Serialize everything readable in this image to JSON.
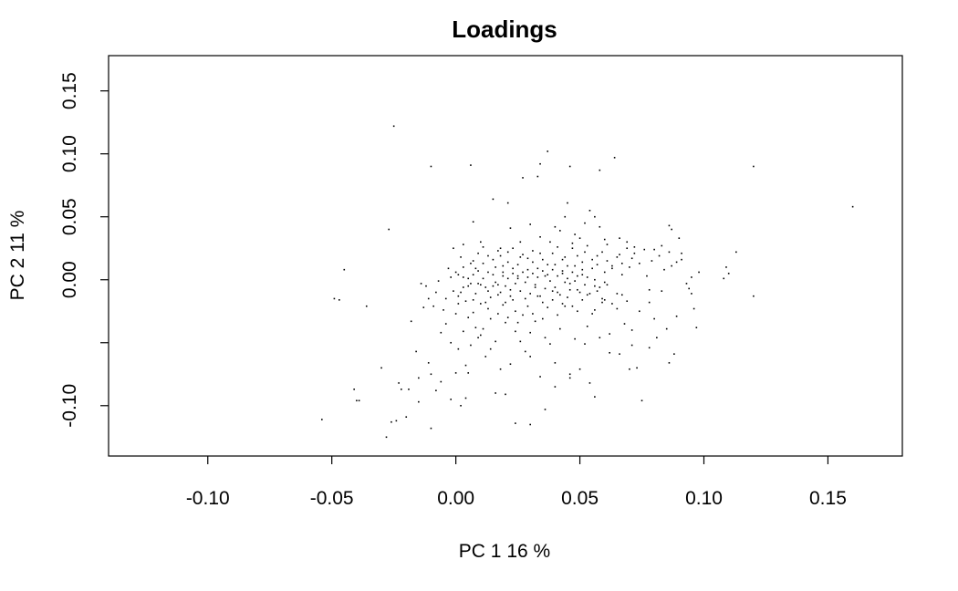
{
  "chart_data": {
    "type": "scatter",
    "title": "Loadings",
    "xlabel": "PC 1 16 %",
    "ylabel": "PC 2 11 %",
    "xlim": [
      -0.14,
      0.18
    ],
    "ylim": [
      -0.14,
      0.178
    ],
    "xticks": [
      -0.1,
      -0.05,
      0.0,
      0.05,
      0.1,
      0.15
    ],
    "xtick_labels": [
      "-0.10",
      "-0.05",
      "0.00",
      "0.05",
      "0.10",
      "0.15"
    ],
    "yticks": [
      -0.1,
      -0.05,
      0.0,
      0.05,
      0.1,
      0.15
    ],
    "ytick_labels": [
      "-0.10",
      "",
      "0.00",
      "0.05",
      "0.10",
      "0.15"
    ],
    "grid": false,
    "legend": "none",
    "point_color": "#000000",
    "points": [
      [
        -0.054,
        -0.111
      ],
      [
        -0.049,
        -0.015
      ],
      [
        -0.047,
        -0.016
      ],
      [
        -0.045,
        0.008
      ],
      [
        -0.041,
        -0.087
      ],
      [
        -0.04,
        -0.096
      ],
      [
        -0.039,
        -0.096
      ],
      [
        -0.036,
        -0.021
      ],
      [
        -0.03,
        -0.07
      ],
      [
        -0.028,
        -0.125
      ],
      [
        -0.027,
        0.04
      ],
      [
        -0.026,
        -0.113
      ],
      [
        -0.025,
        0.122
      ],
      [
        -0.024,
        -0.112
      ],
      [
        -0.023,
        -0.082
      ],
      [
        -0.022,
        -0.087
      ],
      [
        -0.02,
        -0.109
      ],
      [
        -0.019,
        -0.087
      ],
      [
        -0.018,
        -0.033
      ],
      [
        -0.016,
        -0.057
      ],
      [
        -0.015,
        -0.078
      ],
      [
        -0.014,
        -0.003
      ],
      [
        -0.013,
        -0.022
      ],
      [
        -0.012,
        -0.005
      ],
      [
        -0.011,
        -0.015
      ],
      [
        -0.01,
        -0.075
      ],
      [
        -0.01,
        -0.118
      ],
      [
        -0.009,
        -0.021
      ],
      [
        -0.008,
        -0.01
      ],
      [
        -0.007,
        -0.001
      ],
      [
        -0.006,
        -0.081
      ],
      [
        -0.005,
        -0.024
      ],
      [
        -0.004,
        -0.015
      ],
      [
        -0.003,
        0.009
      ],
      [
        -0.002,
        -0.095
      ],
      [
        -0.001,
        0.025
      ],
      [
        0.0,
        -0.027
      ],
      [
        0.001,
        -0.055
      ],
      [
        0.002,
        0.018
      ],
      [
        0.003,
        -0.006
      ],
      [
        0.004,
        -0.068
      ],
      [
        0.005,
        -0.074
      ],
      [
        0.006,
        0.013
      ],
      [
        0.007,
        -0.026
      ],
      [
        0.008,
        0.009
      ],
      [
        0.009,
        0.021
      ],
      [
        0.01,
        -0.004
      ],
      [
        0.011,
        0.026
      ],
      [
        0.012,
        -0.018
      ],
      [
        0.013,
        0.006
      ],
      [
        0.014,
        -0.031
      ],
      [
        0.015,
        0.064
      ],
      [
        0.016,
        0.01
      ],
      [
        0.017,
        -0.012
      ],
      [
        0.018,
        0.019
      ],
      [
        0.019,
        0.003
      ],
      [
        0.02,
        -0.034
      ],
      [
        0.021,
        0.014
      ],
      [
        0.022,
        -0.008
      ],
      [
        0.023,
        0.025
      ],
      [
        0.024,
        -0.025
      ],
      [
        0.025,
        0.001
      ],
      [
        0.026,
        0.018
      ],
      [
        0.027,
        0.081
      ],
      [
        0.028,
        -0.015
      ],
      [
        0.029,
        0.008
      ],
      [
        0.03,
        -0.042
      ],
      [
        0.031,
        0.014
      ],
      [
        0.032,
        -0.006
      ],
      [
        0.033,
        0.082
      ],
      [
        0.034,
        0.021
      ],
      [
        0.035,
        -0.018
      ],
      [
        0.036,
        0.003
      ],
      [
        0.037,
        0.102
      ],
      [
        0.038,
        0.03
      ],
      [
        0.039,
        -0.009
      ],
      [
        0.04,
        0.012
      ],
      [
        0.041,
        -0.028
      ],
      [
        0.042,
        0.039
      ],
      [
        0.043,
        0.007
      ],
      [
        0.044,
        0.018
      ],
      [
        0.045,
        0.061
      ],
      [
        0.046,
        -0.003
      ],
      [
        0.047,
        0.025
      ],
      [
        0.048,
        0.011
      ],
      [
        0.049,
        -0.025
      ],
      [
        0.05,
        0.033
      ],
      [
        0.051,
        0.004
      ],
      [
        0.052,
        0.022
      ],
      [
        0.053,
        -0.037
      ],
      [
        0.054,
        0.055
      ],
      [
        0.055,
        0.009
      ],
      [
        0.056,
        -0.005
      ],
      [
        0.057,
        0.019
      ],
      [
        0.058,
        0.087
      ],
      [
        0.059,
        -0.018
      ],
      [
        0.06,
        0.006
      ],
      [
        0.061,
        0.028
      ],
      [
        0.062,
        -0.058
      ],
      [
        0.063,
        0.011
      ],
      [
        0.064,
        0.097
      ],
      [
        0.065,
        -0.011
      ],
      [
        0.066,
        0.02
      ],
      [
        0.067,
        0.004
      ],
      [
        0.068,
        -0.035
      ],
      [
        0.069,
        0.03
      ],
      [
        0.07,
        0.01
      ],
      [
        0.071,
        -0.04
      ],
      [
        0.072,
        0.021
      ],
      [
        0.073,
        -0.07
      ],
      [
        0.074,
        0.013
      ],
      [
        0.075,
        -0.096
      ],
      [
        0.076,
        0.024
      ],
      [
        0.077,
        0.003
      ],
      [
        0.078,
        -0.008
      ],
      [
        0.079,
        0.015
      ],
      [
        0.08,
        -0.031
      ],
      [
        0.082,
        0.019
      ],
      [
        0.083,
        0.027
      ],
      [
        0.084,
        0.008
      ],
      [
        0.085,
        -0.039
      ],
      [
        0.086,
        0.022
      ],
      [
        0.087,
        0.04
      ],
      [
        0.088,
        -0.059
      ],
      [
        0.089,
        0.014
      ],
      [
        0.09,
        0.033
      ],
      [
        0.091,
        0.021
      ],
      [
        0.093,
        -0.003
      ],
      [
        0.095,
        -0.011
      ],
      [
        0.096,
        -0.023
      ],
      [
        0.097,
        -0.038
      ],
      [
        0.108,
        0.001
      ],
      [
        0.109,
        0.01
      ],
      [
        0.11,
        0.005
      ],
      [
        0.113,
        0.022
      ],
      [
        0.12,
        0.09
      ],
      [
        0.12,
        -0.013
      ],
      [
        0.16,
        0.058
      ],
      [
        0.002,
        -0.1
      ],
      [
        0.004,
        -0.094
      ],
      [
        0.006,
        -0.052
      ],
      [
        0.008,
        -0.038
      ],
      [
        0.01,
        -0.044
      ],
      [
        0.012,
        -0.061
      ],
      [
        0.014,
        -0.055
      ],
      [
        0.016,
        -0.049
      ],
      [
        0.018,
        -0.071
      ],
      [
        0.02,
        -0.018
      ],
      [
        0.022,
        -0.067
      ],
      [
        0.024,
        -0.041
      ],
      [
        0.026,
        -0.049
      ],
      [
        0.028,
        -0.057
      ],
      [
        0.03,
        -0.061
      ],
      [
        0.032,
        -0.033
      ],
      [
        0.034,
        -0.077
      ],
      [
        0.036,
        -0.046
      ],
      [
        0.038,
        -0.051
      ],
      [
        0.04,
        -0.066
      ],
      [
        0.042,
        -0.039
      ],
      [
        0.044,
        -0.021
      ],
      [
        0.046,
        -0.075
      ],
      [
        0.048,
        -0.047
      ],
      [
        0.05,
        -0.071
      ],
      [
        0.052,
        -0.051
      ],
      [
        0.054,
        -0.082
      ],
      [
        0.056,
        -0.024
      ],
      [
        0.058,
        -0.046
      ],
      [
        0.06,
        -0.016
      ],
      [
        0.016,
        -0.09
      ],
      [
        0.02,
        -0.091
      ],
      [
        0.024,
        -0.114
      ],
      [
        0.03,
        -0.115
      ],
      [
        0.036,
        -0.103
      ],
      [
        0.04,
        -0.085
      ],
      [
        0.046,
        -0.078
      ],
      [
        0.056,
        -0.093
      ],
      [
        0.066,
        -0.059
      ],
      [
        0.07,
        -0.071
      ],
      [
        0.078,
        -0.054
      ],
      [
        0.086,
        -0.066
      ],
      [
        -0.015,
        -0.097
      ],
      [
        -0.011,
        -0.066
      ],
      [
        -0.008,
        -0.088
      ],
      [
        -0.006,
        -0.042
      ],
      [
        -0.004,
        -0.035
      ],
      [
        -0.002,
        -0.05
      ],
      [
        0.0,
        -0.074
      ],
      [
        0.001,
        -0.019
      ],
      [
        0.003,
        -0.041
      ],
      [
        0.005,
        -0.03
      ],
      [
        0.007,
        -0.016
      ],
      [
        0.009,
        -0.046
      ],
      [
        0.011,
        -0.039
      ],
      [
        0.013,
        -0.023
      ],
      [
        0.015,
        -0.005
      ],
      [
        0.017,
        -0.027
      ],
      [
        0.019,
        -0.02
      ],
      [
        0.021,
        -0.03
      ],
      [
        0.023,
        -0.016
      ],
      [
        0.025,
        -0.034
      ],
      [
        0.027,
        -0.028
      ],
      [
        0.029,
        -0.021
      ],
      [
        0.031,
        -0.027
      ],
      [
        0.033,
        -0.013
      ],
      [
        0.035,
        -0.031
      ],
      [
        0.037,
        -0.022
      ],
      [
        0.039,
        -0.016
      ],
      [
        0.041,
        -0.01
      ],
      [
        0.043,
        -0.019
      ],
      [
        0.045,
        -0.014
      ],
      [
        0.047,
        -0.021
      ],
      [
        0.049,
        -0.008
      ],
      [
        0.051,
        -0.016
      ],
      [
        0.053,
        -0.012
      ],
      [
        0.055,
        -0.027
      ],
      [
        0.057,
        -0.009
      ],
      [
        0.059,
        -0.015
      ],
      [
        0.061,
        -0.004
      ],
      [
        0.063,
        -0.019
      ],
      [
        0.065,
        -0.023
      ],
      [
        0.067,
        -0.012
      ],
      [
        0.069,
        -0.017
      ],
      [
        0.001,
        0.004
      ],
      [
        0.003,
        0.01
      ],
      [
        0.005,
        0.001
      ],
      [
        0.007,
        0.015
      ],
      [
        0.009,
        0.007
      ],
      [
        0.011,
        0.013
      ],
      [
        0.013,
        0.019
      ],
      [
        0.015,
        0.016
      ],
      [
        0.017,
        0.023
      ],
      [
        0.019,
        0.011
      ],
      [
        0.021,
        0.022
      ],
      [
        0.023,
        0.005
      ],
      [
        0.025,
        0.012
      ],
      [
        0.027,
        0.02
      ],
      [
        0.029,
        0.017
      ],
      [
        0.031,
        0.023
      ],
      [
        0.033,
        0.009
      ],
      [
        0.035,
        0.016
      ],
      [
        0.037,
        0.012
      ],
      [
        0.039,
        0.021
      ],
      [
        0.041,
        0.026
      ],
      [
        0.043,
        0.016
      ],
      [
        0.045,
        0.011
      ],
      [
        0.047,
        0.029
      ],
      [
        0.049,
        0.019
      ],
      [
        0.051,
        0.014
      ],
      [
        0.053,
        0.027
      ],
      [
        0.055,
        0.016
      ],
      [
        0.057,
        0.012
      ],
      [
        0.059,
        0.022
      ],
      [
        0.061,
        0.015
      ],
      [
        0.063,
        0.009
      ],
      [
        0.065,
        0.018
      ],
      [
        0.067,
        0.013
      ],
      [
        0.069,
        0.025
      ],
      [
        0.071,
        0.017
      ],
      [
        0.002,
        -0.01
      ],
      [
        0.004,
        -0.017
      ],
      [
        0.006,
        -0.003
      ],
      [
        0.008,
        -0.011
      ],
      [
        0.01,
        -0.019
      ],
      [
        0.012,
        -0.006
      ],
      [
        0.014,
        -0.014
      ],
      [
        0.016,
        -0.002
      ],
      [
        0.018,
        -0.01
      ],
      [
        0.02,
        -0.005
      ],
      [
        0.022,
        -0.013
      ],
      [
        0.024,
        -0.003
      ],
      [
        0.026,
        -0.009
      ],
      [
        0.028,
        -0.002
      ],
      [
        0.03,
        -0.011
      ],
      [
        0.032,
        -0.004
      ],
      [
        0.034,
        -0.013
      ],
      [
        0.036,
        -0.007
      ],
      [
        0.038,
        -0.001
      ],
      [
        0.04,
        -0.006
      ],
      [
        0.042,
        -0.012
      ],
      [
        0.044,
        -0.002
      ],
      [
        0.046,
        -0.008
      ],
      [
        0.048,
        -0.001
      ],
      [
        0.05,
        -0.01
      ],
      [
        0.052,
        -0.004
      ],
      [
        0.054,
        -0.011
      ],
      [
        0.056,
        0.0
      ],
      [
        0.058,
        -0.006
      ],
      [
        0.06,
        -0.002
      ],
      [
        -0.002,
        0.002
      ],
      [
        -0.001,
        -0.009
      ],
      [
        0.0,
        0.006
      ],
      [
        0.001,
        -0.013
      ],
      [
        0.003,
        0.002
      ],
      [
        0.005,
        -0.005
      ],
      [
        0.007,
        0.004
      ],
      [
        0.009,
        -0.003
      ],
      [
        0.011,
        0.001
      ],
      [
        0.013,
        -0.009
      ],
      [
        0.015,
        0.004
      ],
      [
        0.017,
        -0.004
      ],
      [
        0.019,
        0.006
      ],
      [
        0.021,
        0.001
      ],
      [
        0.023,
        0.009
      ],
      [
        0.025,
        0.003
      ],
      [
        0.027,
        0.006
      ],
      [
        0.029,
        0.002
      ],
      [
        0.031,
        0.005
      ],
      [
        0.033,
        0.002
      ],
      [
        0.035,
        0.007
      ],
      [
        0.037,
        0.004
      ],
      [
        0.039,
        0.008
      ],
      [
        0.041,
        0.003
      ],
      [
        0.043,
        0.005
      ],
      [
        0.045,
        0.001
      ],
      [
        0.047,
        0.006
      ],
      [
        0.049,
        0.003
      ],
      [
        0.051,
        0.008
      ],
      [
        0.053,
        0.002
      ],
      [
        0.003,
        0.028
      ],
      [
        0.01,
        0.03
      ],
      [
        0.018,
        0.025
      ],
      [
        0.026,
        0.03
      ],
      [
        0.034,
        0.034
      ],
      [
        0.04,
        0.042
      ],
      [
        0.048,
        0.036
      ],
      [
        0.052,
        0.045
      ],
      [
        0.06,
        0.032
      ],
      [
        0.066,
        0.033
      ],
      [
        0.072,
        0.026
      ],
      [
        0.08,
        0.024
      ],
      [
        0.007,
        0.046
      ],
      [
        0.022,
        0.041
      ],
      [
        0.03,
        0.044
      ],
      [
        0.044,
        0.05
      ],
      [
        0.058,
        0.042
      ],
      [
        0.086,
        0.043
      ],
      [
        -0.01,
        0.09
      ],
      [
        0.006,
        0.091
      ],
      [
        0.034,
        0.092
      ],
      [
        0.046,
        0.09
      ],
      [
        0.021,
        0.061
      ],
      [
        0.056,
        0.05
      ],
      [
        0.062,
        -0.043
      ],
      [
        0.071,
        -0.052
      ],
      [
        0.081,
        -0.046
      ],
      [
        0.089,
        -0.029
      ],
      [
        0.094,
        -0.007
      ],
      [
        0.098,
        0.006
      ],
      [
        0.074,
        -0.025
      ],
      [
        0.078,
        -0.018
      ],
      [
        0.083,
        -0.009
      ],
      [
        0.087,
        0.011
      ],
      [
        0.091,
        0.016
      ],
      [
        0.095,
        0.002
      ]
    ]
  }
}
